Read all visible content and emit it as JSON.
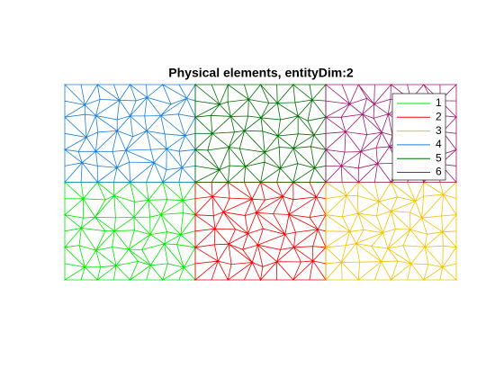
{
  "chart_data": {
    "type": "mesh",
    "title": "Physical elements, entityDim:2",
    "series": [
      {
        "name": "1",
        "color": "#00e600"
      },
      {
        "name": "2",
        "color": "#f00000"
      },
      {
        "name": "3",
        "color": "#f2c200"
      },
      {
        "name": "4",
        "color": "#1a7fd6"
      },
      {
        "name": "5",
        "color": "#006e00"
      },
      {
        "name": "6",
        "color": "#a0186e"
      }
    ]
  }
}
